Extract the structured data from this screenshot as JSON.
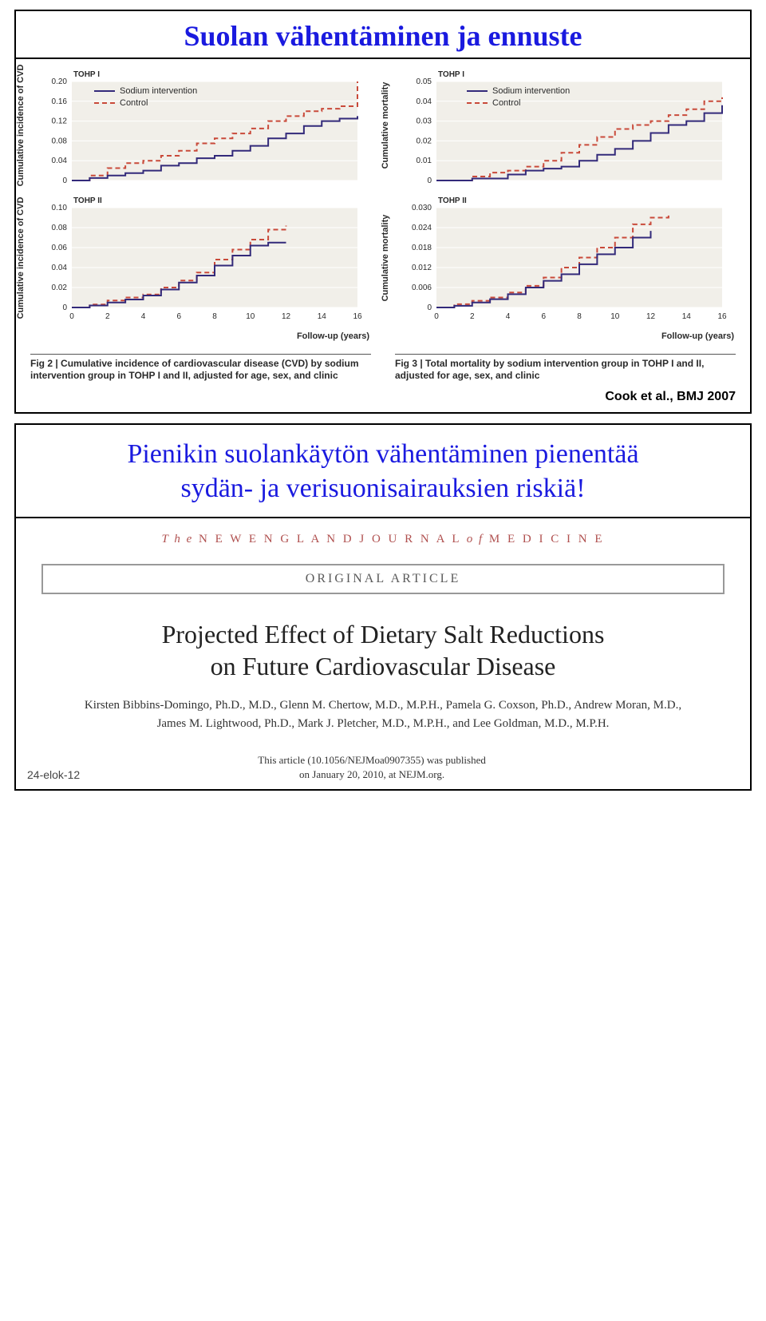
{
  "slide1": {
    "title": "Suolan vähentäminen ja ennuste",
    "citation": "Cook et al., BMJ 2007",
    "ylabel_left": "Cumulative incidence of CVD",
    "ylabel_right": "Cumulative mortality",
    "xaxis_label": "Follow-up (years)",
    "legend": {
      "intervention": "Sodium intervention",
      "control": "Control"
    },
    "colors": {
      "plot_bg": "#f1efe9",
      "intervention": "#332a7a",
      "control": "#c94a3a",
      "axis": "#555555",
      "grid": "#ffffff"
    },
    "caption_left": {
      "lead": "Fig 2 |",
      "text": "Cumulative incidence of cardiovascular disease (CVD) by sodium intervention group in TOHP I and II, adjusted for age, sex, and clinic"
    },
    "caption_right": {
      "lead": "Fig 3 |",
      "text": "Total mortality by sodium intervention group in TOHP I and II, adjusted for age, sex, and clinic"
    },
    "charts": {
      "tohp1_cvd": {
        "title": "TOHP I",
        "ylim": [
          0,
          0.2
        ],
        "ytick_step": 0.04,
        "xlim": [
          0,
          16
        ],
        "show_xticks": false,
        "intervention": [
          [
            0,
            0
          ],
          [
            1,
            0.005
          ],
          [
            2,
            0.01
          ],
          [
            3,
            0.015
          ],
          [
            4,
            0.02
          ],
          [
            5,
            0.03
          ],
          [
            6,
            0.035
          ],
          [
            7,
            0.045
          ],
          [
            8,
            0.05
          ],
          [
            9,
            0.06
          ],
          [
            10,
            0.07
          ],
          [
            11,
            0.085
          ],
          [
            12,
            0.095
          ],
          [
            13,
            0.11
          ],
          [
            14,
            0.12
          ],
          [
            15,
            0.125
          ],
          [
            16,
            0.13
          ]
        ],
        "control": [
          [
            0,
            0
          ],
          [
            1,
            0.01
          ],
          [
            2,
            0.025
          ],
          [
            3,
            0.035
          ],
          [
            4,
            0.04
          ],
          [
            5,
            0.05
          ],
          [
            6,
            0.06
          ],
          [
            7,
            0.075
          ],
          [
            8,
            0.085
          ],
          [
            9,
            0.095
          ],
          [
            10,
            0.105
          ],
          [
            11,
            0.12
          ],
          [
            12,
            0.13
          ],
          [
            13,
            0.14
          ],
          [
            14,
            0.145
          ],
          [
            15,
            0.15
          ],
          [
            16,
            0.2
          ]
        ]
      },
      "tohp2_cvd": {
        "title": "TOHP II",
        "ylim": [
          0,
          0.1
        ],
        "ytick_step": 0.02,
        "xlim": [
          0,
          16
        ],
        "show_xticks": true,
        "xtick_step": 2,
        "intervention": [
          [
            0,
            0
          ],
          [
            1,
            0.002
          ],
          [
            2,
            0.005
          ],
          [
            3,
            0.008
          ],
          [
            4,
            0.012
          ],
          [
            5,
            0.018
          ],
          [
            6,
            0.025
          ],
          [
            7,
            0.032
          ],
          [
            8,
            0.042
          ],
          [
            9,
            0.052
          ],
          [
            10,
            0.062
          ],
          [
            11,
            0.065
          ],
          [
            12,
            0.065
          ]
        ],
        "control": [
          [
            0,
            0
          ],
          [
            1,
            0.003
          ],
          [
            2,
            0.007
          ],
          [
            3,
            0.01
          ],
          [
            4,
            0.013
          ],
          [
            5,
            0.02
          ],
          [
            6,
            0.027
          ],
          [
            7,
            0.035
          ],
          [
            8,
            0.048
          ],
          [
            9,
            0.058
          ],
          [
            10,
            0.068
          ],
          [
            11,
            0.078
          ],
          [
            12,
            0.082
          ]
        ]
      },
      "tohp1_mort": {
        "title": "TOHP I",
        "ylim": [
          0,
          0.05
        ],
        "ytick_step": 0.01,
        "xlim": [
          0,
          16
        ],
        "show_xticks": false,
        "intervention": [
          [
            0,
            0
          ],
          [
            2,
            0.001
          ],
          [
            4,
            0.003
          ],
          [
            5,
            0.005
          ],
          [
            6,
            0.006
          ],
          [
            7,
            0.007
          ],
          [
            8,
            0.01
          ],
          [
            9,
            0.013
          ],
          [
            10,
            0.016
          ],
          [
            11,
            0.02
          ],
          [
            12,
            0.024
          ],
          [
            13,
            0.028
          ],
          [
            14,
            0.03
          ],
          [
            15,
            0.034
          ],
          [
            16,
            0.038
          ]
        ],
        "control": [
          [
            0,
            0
          ],
          [
            2,
            0.002
          ],
          [
            3,
            0.004
          ],
          [
            4,
            0.005
          ],
          [
            5,
            0.007
          ],
          [
            6,
            0.01
          ],
          [
            7,
            0.014
          ],
          [
            8,
            0.018
          ],
          [
            9,
            0.022
          ],
          [
            10,
            0.026
          ],
          [
            11,
            0.028
          ],
          [
            12,
            0.03
          ],
          [
            13,
            0.033
          ],
          [
            14,
            0.036
          ],
          [
            15,
            0.04
          ],
          [
            16,
            0.042
          ]
        ]
      },
      "tohp2_mort": {
        "title": "TOHP II",
        "ylim": [
          0,
          0.03
        ],
        "ytick_step": 0.006,
        "xlim": [
          0,
          16
        ],
        "show_xticks": true,
        "xtick_step": 2,
        "intervention": [
          [
            0,
            0
          ],
          [
            1,
            0.0005
          ],
          [
            2,
            0.0015
          ],
          [
            3,
            0.0025
          ],
          [
            4,
            0.004
          ],
          [
            5,
            0.006
          ],
          [
            6,
            0.008
          ],
          [
            7,
            0.01
          ],
          [
            8,
            0.013
          ],
          [
            9,
            0.016
          ],
          [
            10,
            0.018
          ],
          [
            11,
            0.021
          ],
          [
            12,
            0.023
          ]
        ],
        "control": [
          [
            0,
            0
          ],
          [
            1,
            0.001
          ],
          [
            2,
            0.002
          ],
          [
            3,
            0.003
          ],
          [
            4,
            0.0045
          ],
          [
            5,
            0.0065
          ],
          [
            6,
            0.009
          ],
          [
            7,
            0.012
          ],
          [
            8,
            0.015
          ],
          [
            9,
            0.018
          ],
          [
            10,
            0.021
          ],
          [
            11,
            0.025
          ],
          [
            12,
            0.027
          ],
          [
            13,
            0.028
          ]
        ]
      }
    }
  },
  "slide2": {
    "title_line1": "Pienikin suolankäytön vähentäminen pienentää",
    "title_line2": "sydän- ja verisuonisairauksien riskiä!",
    "journal_pre": "T h e",
    "journal_main": " N E W  E N G L A N D  J O U R N A L ",
    "journal_of": "o f",
    "journal_med": " M E D I C I N E",
    "original_article": "ORIGINAL ARTICLE",
    "paper_title_line1": "Projected Effect of Dietary Salt Reductions",
    "paper_title_line2": "on Future Cardiovascular Disease",
    "authors": "Kirsten Bibbins-Domingo, Ph.D., M.D., Glenn M. Chertow, M.D., M.P.H., Pamela G. Coxson, Ph.D., Andrew Moran, M.D., James M. Lightwood, Ph.D., Mark J. Pletcher, M.D., M.P.H., and Lee Goldman, M.D., M.P.H.",
    "pub_note": "This article (10.1056/NEJMoa0907355) was published on January 20, 2010, at NEJM.org.",
    "date_stamp": "24-elok-12"
  }
}
